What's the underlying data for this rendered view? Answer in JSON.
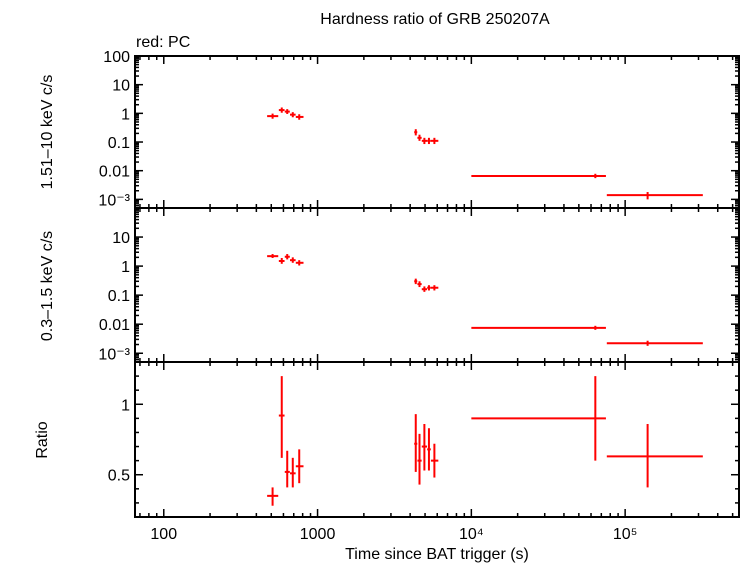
{
  "title": "Hardness ratio of GRB 250207A",
  "legend_label": "red: PC",
  "colors": {
    "data": "#ff0000",
    "axes": "#000000"
  },
  "chart_data": [
    {
      "panel": "hard",
      "type": "scatter",
      "ylabel": "1.51–10 keV c/s",
      "yscale": "log",
      "ylim": [
        0.0005,
        100
      ],
      "yticks": [
        {
          "v": 100,
          "label": "100"
        },
        {
          "v": 10,
          "label": "10"
        },
        {
          "v": 1,
          "label": "1"
        },
        {
          "v": 0.1,
          "label": "0.1"
        },
        {
          "v": 0.01,
          "label": "0.01"
        },
        {
          "v": 0.001,
          "label": "10⁻³"
        }
      ],
      "series": [
        {
          "color": "#ff0000",
          "points": [
            {
              "x": 510,
              "xlo": 470,
              "xhi": 555,
              "y": 0.8,
              "ylo": 0.65,
              "yhi": 0.98
            },
            {
              "x": 585,
              "xlo": 560,
              "xhi": 610,
              "y": 1.3,
              "ylo": 1.05,
              "yhi": 1.6
            },
            {
              "x": 635,
              "xlo": 612,
              "xhi": 660,
              "y": 1.15,
              "ylo": 0.95,
              "yhi": 1.4
            },
            {
              "x": 690,
              "xlo": 662,
              "xhi": 720,
              "y": 0.9,
              "ylo": 0.73,
              "yhi": 1.1
            },
            {
              "x": 760,
              "xlo": 722,
              "xhi": 810,
              "y": 0.75,
              "ylo": 0.6,
              "yhi": 0.93
            },
            {
              "x": 4350,
              "xlo": 4250,
              "xhi": 4450,
              "y": 0.22,
              "ylo": 0.17,
              "yhi": 0.28
            },
            {
              "x": 4600,
              "xlo": 4460,
              "xhi": 4750,
              "y": 0.14,
              "ylo": 0.11,
              "yhi": 0.18
            },
            {
              "x": 4950,
              "xlo": 4760,
              "xhi": 5150,
              "y": 0.11,
              "ylo": 0.085,
              "yhi": 0.14
            },
            {
              "x": 5300,
              "xlo": 5160,
              "xhi": 5450,
              "y": 0.11,
              "ylo": 0.085,
              "yhi": 0.14
            },
            {
              "x": 5750,
              "xlo": 5460,
              "xhi": 6100,
              "y": 0.11,
              "ylo": 0.085,
              "yhi": 0.14
            },
            {
              "x": 64000,
              "xlo": 10000,
              "xhi": 75000,
              "y": 0.0065,
              "ylo": 0.0055,
              "yhi": 0.0078
            },
            {
              "x": 140000,
              "xlo": 76000,
              "xhi": 320000,
              "y": 0.0014,
              "ylo": 0.001,
              "yhi": 0.0018
            }
          ]
        }
      ]
    },
    {
      "panel": "soft",
      "type": "scatter",
      "ylabel": "0.3–1.5 keV c/s",
      "yscale": "log",
      "ylim": [
        0.0005,
        100
      ],
      "yticks": [
        {
          "v": 10,
          "label": "10"
        },
        {
          "v": 1,
          "label": "1"
        },
        {
          "v": 0.1,
          "label": "0.1"
        },
        {
          "v": 0.01,
          "label": "0.01"
        },
        {
          "v": 0.001,
          "label": "10⁻³"
        }
      ],
      "series": [
        {
          "color": "#ff0000",
          "points": [
            {
              "x": 510,
              "xlo": 470,
              "xhi": 555,
              "y": 2.2,
              "ylo": 1.9,
              "yhi": 2.6
            },
            {
              "x": 585,
              "xlo": 560,
              "xhi": 610,
              "y": 1.5,
              "ylo": 1.2,
              "yhi": 1.9
            },
            {
              "x": 635,
              "xlo": 612,
              "xhi": 660,
              "y": 2.1,
              "ylo": 1.7,
              "yhi": 2.6
            },
            {
              "x": 690,
              "xlo": 662,
              "xhi": 720,
              "y": 1.6,
              "ylo": 1.3,
              "yhi": 2.0
            },
            {
              "x": 760,
              "xlo": 722,
              "xhi": 810,
              "y": 1.3,
              "ylo": 1.05,
              "yhi": 1.6
            },
            {
              "x": 4350,
              "xlo": 4250,
              "xhi": 4450,
              "y": 0.3,
              "ylo": 0.24,
              "yhi": 0.37
            },
            {
              "x": 4600,
              "xlo": 4460,
              "xhi": 4750,
              "y": 0.24,
              "ylo": 0.19,
              "yhi": 0.3
            },
            {
              "x": 4950,
              "xlo": 4760,
              "xhi": 5150,
              "y": 0.16,
              "ylo": 0.13,
              "yhi": 0.2
            },
            {
              "x": 5300,
              "xlo": 5160,
              "xhi": 5450,
              "y": 0.18,
              "ylo": 0.145,
              "yhi": 0.22
            },
            {
              "x": 5750,
              "xlo": 5460,
              "xhi": 6100,
              "y": 0.18,
              "ylo": 0.145,
              "yhi": 0.22
            },
            {
              "x": 64000,
              "xlo": 10000,
              "xhi": 75000,
              "y": 0.0075,
              "ylo": 0.0064,
              "yhi": 0.0088
            },
            {
              "x": 140000,
              "xlo": 76000,
              "xhi": 320000,
              "y": 0.0022,
              "ylo": 0.0018,
              "yhi": 0.0027
            }
          ]
        }
      ]
    },
    {
      "panel": "ratio",
      "type": "scatter",
      "ylabel": "Ratio",
      "yscale": "linear",
      "ylim": [
        0.2,
        1.3
      ],
      "yticks": [
        {
          "v": 1,
          "label": "1"
        },
        {
          "v": 0.5,
          "label": "0.5"
        }
      ],
      "series": [
        {
          "color": "#ff0000",
          "points": [
            {
              "x": 510,
              "xlo": 470,
              "xhi": 555,
              "y": 0.35,
              "ylo": 0.28,
              "yhi": 0.41
            },
            {
              "x": 585,
              "xlo": 560,
              "xhi": 610,
              "y": 0.92,
              "ylo": 0.62,
              "yhi": 1.2
            },
            {
              "x": 635,
              "xlo": 612,
              "xhi": 660,
              "y": 0.52,
              "ylo": 0.41,
              "yhi": 0.67
            },
            {
              "x": 690,
              "xlo": 662,
              "xhi": 720,
              "y": 0.51,
              "ylo": 0.41,
              "yhi": 0.62
            },
            {
              "x": 760,
              "xlo": 722,
              "xhi": 810,
              "y": 0.56,
              "ylo": 0.44,
              "yhi": 0.68
            },
            {
              "x": 4350,
              "xlo": 4250,
              "xhi": 4450,
              "y": 0.72,
              "ylo": 0.52,
              "yhi": 0.93
            },
            {
              "x": 4600,
              "xlo": 4460,
              "xhi": 4750,
              "y": 0.6,
              "ylo": 0.43,
              "yhi": 0.79
            },
            {
              "x": 4950,
              "xlo": 4760,
              "xhi": 5150,
              "y": 0.7,
              "ylo": 0.53,
              "yhi": 0.86
            },
            {
              "x": 5300,
              "xlo": 5160,
              "xhi": 5450,
              "y": 0.68,
              "ylo": 0.53,
              "yhi": 0.83
            },
            {
              "x": 5750,
              "xlo": 5460,
              "xhi": 6100,
              "y": 0.6,
              "ylo": 0.48,
              "yhi": 0.72
            },
            {
              "x": 64000,
              "xlo": 10000,
              "xhi": 75000,
              "y": 0.9,
              "ylo": 0.6,
              "yhi": 1.2
            },
            {
              "x": 140000,
              "xlo": 76000,
              "xhi": 320000,
              "y": 0.63,
              "ylo": 0.41,
              "yhi": 0.86
            }
          ]
        }
      ]
    }
  ],
  "xaxis": {
    "label": "Time since BAT trigger (s)",
    "scale": "log",
    "xlim": [
      65,
      550000
    ],
    "ticks": [
      {
        "v": 100,
        "label": "100"
      },
      {
        "v": 1000,
        "label": "1000"
      },
      {
        "v": 10000,
        "label": "10⁴"
      },
      {
        "v": 100000,
        "label": "10⁵"
      }
    ]
  }
}
